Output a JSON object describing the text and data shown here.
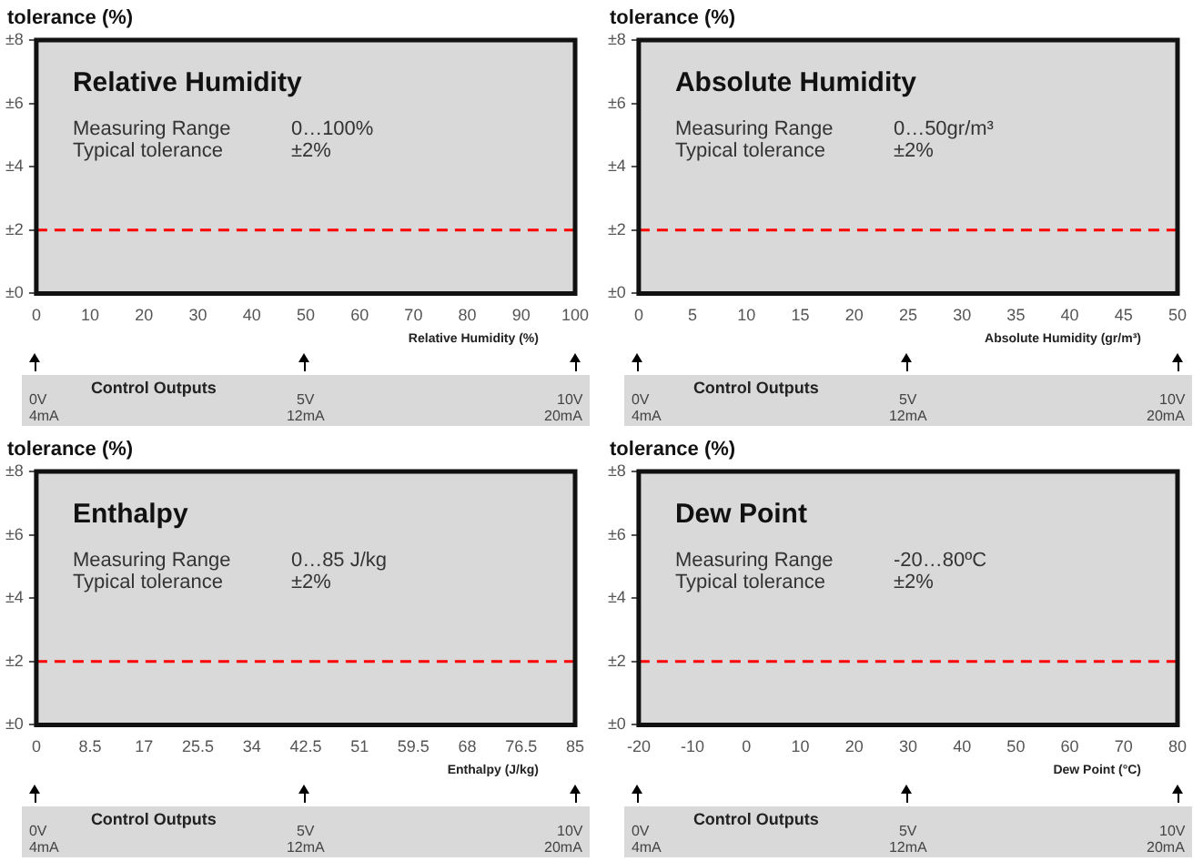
{
  "chart_data": [
    {
      "type": "line",
      "title": "Relative Humidity",
      "ylabel": "tolerance (%)",
      "xlabel": "Relative Humidity (%)",
      "xlim": [
        0,
        100
      ],
      "xticks": [
        0,
        10,
        20,
        30,
        40,
        50,
        60,
        70,
        80,
        90,
        100
      ],
      "ylim": [
        0,
        8
      ],
      "yticks": [
        {
          "value": 0,
          "label": "±0"
        },
        {
          "value": 2,
          "label": "±2"
        },
        {
          "value": 4,
          "label": "±4"
        },
        {
          "value": 6,
          "label": "±6"
        },
        {
          "value": 8,
          "label": "±8"
        }
      ],
      "ref_lines": [
        {
          "axis": "y",
          "value": 2,
          "color": "#ff0000",
          "line_style": "dashed"
        }
      ],
      "annotations": [
        "Measuring Range",
        "0…100%",
        "Typical tolerance",
        "±2%",
        "Control Outputs",
        "0V",
        "4mA",
        "5V",
        "12mA",
        "10V",
        "20mA"
      ]
    },
    {
      "type": "line",
      "title": "Absolute Humidity",
      "ylabel": "tolerance (%)",
      "xlabel": "Absolute Humidity (gr/m³)",
      "xlim": [
        0,
        50
      ],
      "xticks": [
        0,
        5,
        10,
        15,
        20,
        25,
        30,
        35,
        40,
        45,
        50
      ],
      "ylim": [
        0,
        8
      ],
      "yticks": [
        {
          "value": 0,
          "label": "±0"
        },
        {
          "value": 2,
          "label": "±2"
        },
        {
          "value": 4,
          "label": "±4"
        },
        {
          "value": 6,
          "label": "±6"
        },
        {
          "value": 8,
          "label": "±8"
        }
      ],
      "ref_lines": [
        {
          "axis": "y",
          "value": 2,
          "color": "#ff0000",
          "line_style": "dashed"
        }
      ],
      "annotations": [
        "Measuring Range",
        "0…50gr/m³",
        "Typical tolerance",
        "±2%",
        "Control Outputs",
        "0V",
        "4mA",
        "5V",
        "12mA",
        "10V",
        "20mA"
      ]
    },
    {
      "type": "line",
      "title": "Enthalpy",
      "ylabel": "tolerance (%)",
      "xlabel": "Enthalpy (J/kg)",
      "xlim": [
        0,
        85
      ],
      "xticks": [
        0,
        8.5,
        17,
        25.5,
        34,
        42.5,
        51,
        59.5,
        68,
        76.5,
        85
      ],
      "ylim": [
        0,
        8
      ],
      "yticks": [
        {
          "value": 0,
          "label": "±0"
        },
        {
          "value": 2,
          "label": "±2"
        },
        {
          "value": 4,
          "label": "±4"
        },
        {
          "value": 6,
          "label": "±6"
        },
        {
          "value": 8,
          "label": "±8"
        }
      ],
      "ref_lines": [
        {
          "axis": "y",
          "value": 2,
          "color": "#ff0000",
          "line_style": "dashed"
        }
      ],
      "annotations": [
        "Measuring Range",
        "0…85 J/kg",
        "Typical tolerance",
        "±2%",
        "Control Outputs",
        "0V",
        "4mA",
        "5V",
        "12mA",
        "10V",
        "20mA"
      ]
    },
    {
      "type": "line",
      "title": "Dew Point",
      "ylabel": "tolerance (%)",
      "xlabel": "Dew Point (°C)",
      "xlim": [
        -20,
        80
      ],
      "xticks": [
        -20,
        -10,
        0,
        10,
        20,
        30,
        40,
        50,
        60,
        70,
        80
      ],
      "ylim": [
        0,
        8
      ],
      "yticks": [
        {
          "value": 0,
          "label": "±0"
        },
        {
          "value": 2,
          "label": "±2"
        },
        {
          "value": 4,
          "label": "±4"
        },
        {
          "value": 6,
          "label": "±6"
        },
        {
          "value": 8,
          "label": "±8"
        }
      ],
      "ref_lines": [
        {
          "axis": "y",
          "value": 2,
          "color": "#ff0000",
          "line_style": "dashed"
        }
      ],
      "annotations": [
        "Measuring Range",
        "-20…80ºC",
        "Typical tolerance",
        "±2%",
        "Control Outputs",
        "0V",
        "4mA",
        "5V",
        "12mA",
        "10V",
        "20mA"
      ]
    }
  ]
}
